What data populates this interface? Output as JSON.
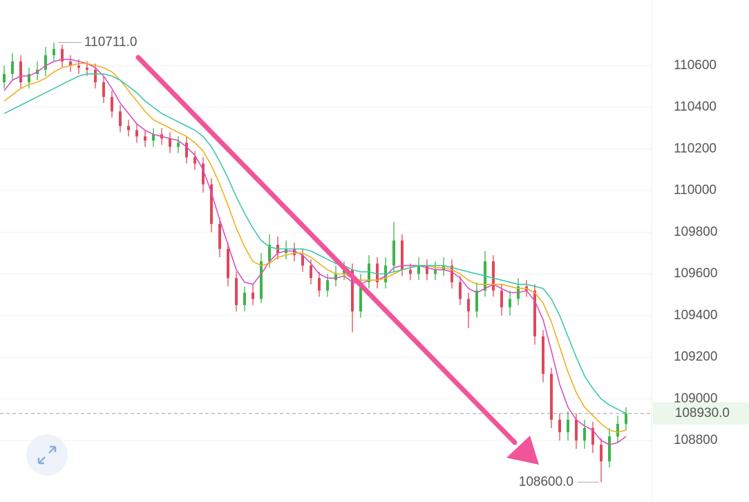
{
  "chart_data": {
    "type": "candlestick",
    "ylim": [
      108505,
      110915
    ],
    "yticks": [
      108800,
      109000,
      109200,
      109400,
      109600,
      109800,
      110000,
      110200,
      110400,
      110600
    ],
    "grid": true,
    "up_color": "#3bb54a",
    "down_color": "#e0475a",
    "candles": {
      "open": [
        110520,
        110560,
        110620,
        110520,
        110560,
        110580,
        110650,
        110680,
        110620,
        110600,
        110590,
        110580,
        110520,
        110450,
        110380,
        110310,
        110290,
        110260,
        110240,
        110270,
        110250,
        110210,
        110230,
        110160,
        110130,
        110030,
        109840,
        109720,
        109580,
        109450,
        109510,
        109480,
        109660,
        109740,
        109700,
        109720,
        109690,
        109640,
        109580,
        109520,
        109570,
        109600,
        109620,
        109420,
        109560,
        109650,
        109560,
        109640,
        109760,
        109620,
        109600,
        109640,
        109600,
        109620,
        109640,
        109560,
        109480,
        109420,
        109520,
        109660,
        109520,
        109440,
        109480,
        109540,
        109520,
        109300,
        109120,
        108900,
        108840,
        108900,
        108800,
        108860,
        108780,
        108700,
        108820,
        108880
      ],
      "high": [
        110600,
        110660,
        110650,
        110590,
        110620,
        110690,
        110711,
        110700,
        110650,
        110630,
        110620,
        110610,
        110550,
        110480,
        110410,
        110340,
        110320,
        110290,
        110300,
        110300,
        110280,
        110260,
        110260,
        110190,
        110160,
        110060,
        109870,
        109750,
        109610,
        109540,
        109550,
        109700,
        109790,
        109780,
        109760,
        109750,
        109720,
        109670,
        109610,
        109600,
        109640,
        109660,
        109650,
        109600,
        109690,
        109680,
        109680,
        109850,
        109790,
        109650,
        109680,
        109670,
        109660,
        109680,
        109670,
        109590,
        109510,
        109560,
        109710,
        109690,
        109550,
        109520,
        109580,
        109570,
        109550,
        109330,
        109150,
        108930,
        108940,
        108930,
        108900,
        108890,
        108810,
        108860,
        108920,
        108960
      ],
      "low": [
        110490,
        110530,
        110490,
        110490,
        110530,
        110550,
        110620,
        110590,
        110570,
        110560,
        110550,
        110490,
        110420,
        110350,
        110280,
        110260,
        110230,
        110210,
        110210,
        110220,
        110180,
        110180,
        110130,
        110100,
        109990,
        109800,
        109680,
        109540,
        109420,
        109420,
        109450,
        109460,
        109630,
        109670,
        109670,
        109660,
        109610,
        109550,
        109490,
        109490,
        109540,
        109570,
        109320,
        109390,
        109530,
        109530,
        109530,
        109610,
        109590,
        109570,
        109570,
        109570,
        109570,
        109590,
        109530,
        109450,
        109340,
        109390,
        109490,
        109490,
        109400,
        109400,
        109450,
        109490,
        109260,
        109080,
        108860,
        108800,
        108800,
        108760,
        108760,
        108740,
        108600,
        108670,
        108790,
        108850
      ],
      "close": [
        110560,
        110620,
        110520,
        110560,
        110580,
        110650,
        110680,
        110620,
        110600,
        110590,
        110580,
        110520,
        110450,
        110380,
        110310,
        110290,
        110260,
        110240,
        110270,
        110250,
        110210,
        110230,
        110160,
        110130,
        110030,
        109840,
        109720,
        109580,
        109450,
        109510,
        109480,
        109660,
        109740,
        109700,
        109720,
        109690,
        109640,
        109580,
        109520,
        109570,
        109600,
        109620,
        109420,
        109560,
        109650,
        109560,
        109640,
        109760,
        109620,
        109600,
        109640,
        109600,
        109620,
        109640,
        109560,
        109480,
        109420,
        109520,
        109660,
        109520,
        109440,
        109480,
        109540,
        109520,
        109300,
        109120,
        108900,
        108840,
        108900,
        108800,
        108860,
        108780,
        108700,
        108820,
        108880,
        108930
      ]
    },
    "series": [
      {
        "color": "#d84fc0",
        "values": [
          110480,
          110530,
          110550,
          110550,
          110570,
          110600,
          110620,
          110630,
          110630,
          110620,
          110610,
          110590,
          110550,
          110490,
          110420,
          110370,
          110320,
          110290,
          110270,
          110260,
          110250,
          110240,
          110210,
          110170,
          110100,
          109990,
          109860,
          109740,
          109620,
          109560,
          109550,
          109600,
          109660,
          109700,
          109710,
          109710,
          109690,
          109650,
          109600,
          109580,
          109580,
          109590,
          109560,
          109550,
          109570,
          109570,
          109590,
          109630,
          109640,
          109640,
          109640,
          109630,
          109620,
          109620,
          109610,
          109580,
          109530,
          109510,
          109530,
          109550,
          109530,
          109510,
          109510,
          109520,
          109470,
          109380,
          109230,
          109070,
          108960,
          108900,
          108870,
          108850,
          108800,
          108780,
          108790,
          108820
        ]
      },
      {
        "color": "#f0b020",
        "values": [
          110430,
          110460,
          110490,
          110510,
          110520,
          110540,
          110570,
          110590,
          110600,
          110610,
          110610,
          110600,
          110590,
          110570,
          110530,
          110480,
          110430,
          110380,
          110340,
          110320,
          110300,
          110280,
          110260,
          110230,
          110190,
          110120,
          110030,
          109930,
          109820,
          109730,
          109660,
          109640,
          109650,
          109680,
          109690,
          109700,
          109700,
          109680,
          109650,
          109620,
          109600,
          109600,
          109580,
          109570,
          109570,
          109570,
          109580,
          109600,
          109620,
          109630,
          109640,
          109640,
          109630,
          109630,
          109620,
          109600,
          109570,
          109550,
          109550,
          109550,
          109550,
          109540,
          109530,
          109530,
          109510,
          109460,
          109370,
          109250,
          109130,
          109030,
          108960,
          108920,
          108880,
          108850,
          108840,
          108850
        ]
      },
      {
        "color": "#3cc8a8",
        "values": [
          110370,
          110390,
          110410,
          110430,
          110450,
          110470,
          110490,
          110510,
          110530,
          110550,
          110560,
          110560,
          110560,
          110550,
          110530,
          110500,
          110470,
          110430,
          110400,
          110370,
          110350,
          110330,
          110310,
          110290,
          110260,
          110210,
          110140,
          110060,
          109970,
          109890,
          109820,
          109760,
          109730,
          109720,
          109720,
          109720,
          109720,
          109710,
          109690,
          109670,
          109650,
          109640,
          109620,
          109610,
          109610,
          109600,
          109600,
          109610,
          109620,
          109630,
          109640,
          109640,
          109640,
          109640,
          109630,
          109620,
          109610,
          109600,
          109590,
          109580,
          109570,
          109560,
          109550,
          109550,
          109540,
          109530,
          109480,
          109400,
          109300,
          109200,
          109110,
          109050,
          109000,
          108970,
          108950,
          108930
        ]
      }
    ],
    "annotations": {
      "max": {
        "value": 110711,
        "label": "110711.0"
      },
      "min": {
        "value": 108600,
        "label": "108600.0"
      },
      "last": {
        "value": 108930,
        "label": "108930.0"
      }
    }
  }
}
